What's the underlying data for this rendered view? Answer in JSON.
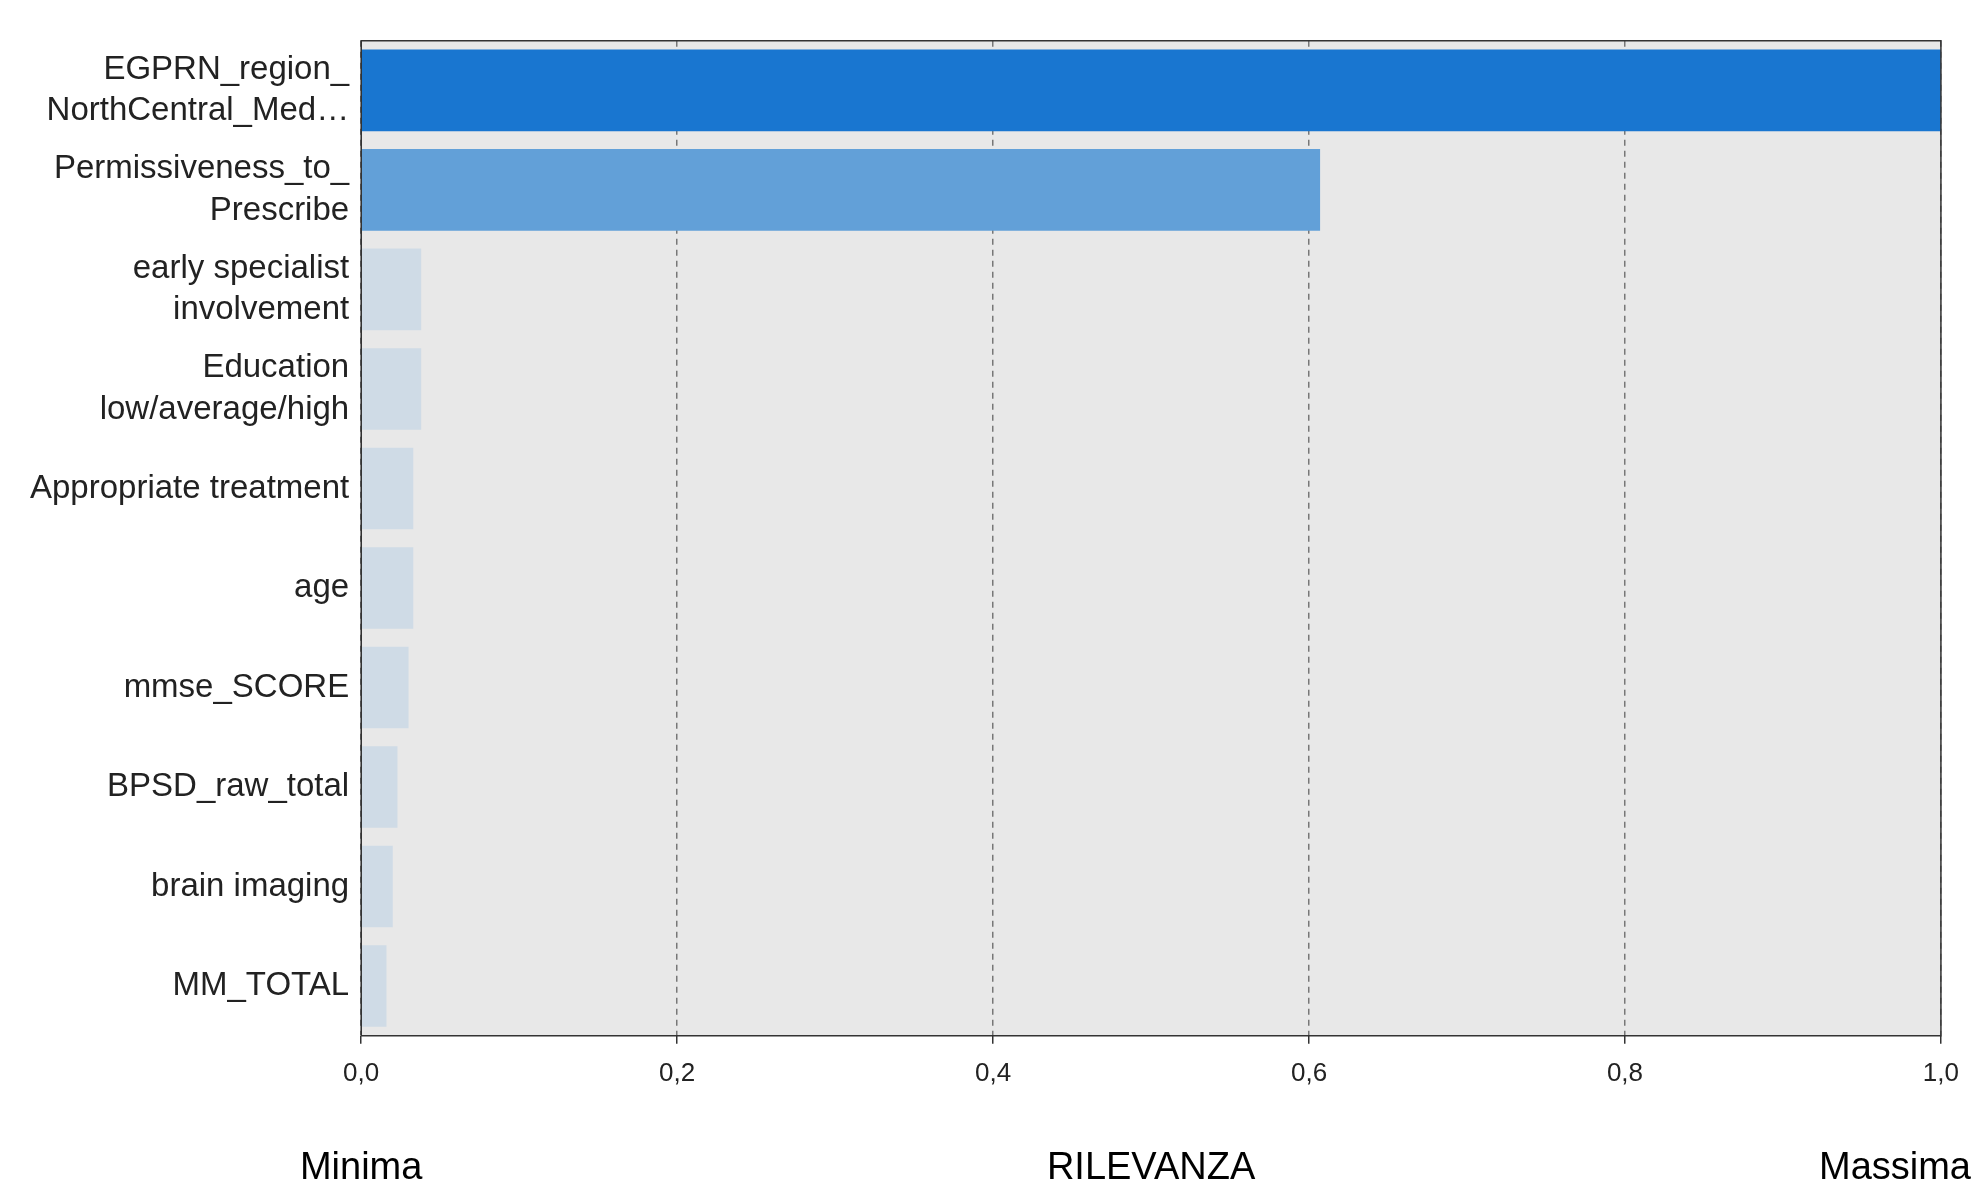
{
  "chart_data": {
    "type": "bar",
    "orientation": "horizontal",
    "xlabel": "RILEVANZA",
    "annotations": [
      "Minima",
      "Massima"
    ],
    "categories": [
      "EGPRN_region_\nNorthCentral_Med…",
      "Permissiveness_to_\nPrescribe",
      "early specialist\ninvolvement",
      "Education\nlow/average/high",
      "Appropriate treatment",
      "age",
      "mmse_SCORE",
      "BPSD_raw_total",
      "brain imaging",
      "MM_TOTAL"
    ],
    "values": [
      1.0,
      0.607,
      0.038,
      0.038,
      0.033,
      0.033,
      0.03,
      0.023,
      0.02,
      0.016
    ],
    "colors": [
      "#1976d0",
      "#62a0d8",
      "#cfdbe6",
      "#cfdbe6",
      "#cfdbe6",
      "#cfdbe6",
      "#cfdbe6",
      "#cfdbe6",
      "#cfdbe6",
      "#cfdbe6"
    ],
    "xlim": [
      0,
      1
    ],
    "xticks": [
      {
        "value": 0,
        "label": "0,0"
      },
      {
        "value": 0.2,
        "label": "0,2"
      },
      {
        "value": 0.4,
        "label": "0,4"
      },
      {
        "value": 0.6,
        "label": "0,6"
      },
      {
        "value": 0.8,
        "label": "0,8"
      },
      {
        "value": 1,
        "label": "1,0"
      }
    ],
    "grid": "x",
    "legend": false
  }
}
